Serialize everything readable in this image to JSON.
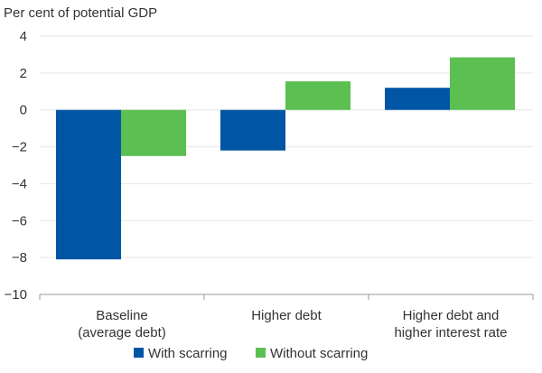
{
  "chart_data": {
    "type": "bar",
    "ylabel": "Per cent of potential GDP",
    "categories": [
      [
        "Baseline",
        "(average debt)"
      ],
      [
        "Higher debt"
      ],
      [
        "Higher debt and",
        "higher interest rate"
      ]
    ],
    "series": [
      {
        "name": "With scarring",
        "color": "#0055a5",
        "values": [
          -8.1,
          -2.2,
          1.2
        ]
      },
      {
        "name": "Without scarring",
        "color": "#5cbf52",
        "values": [
          -2.5,
          1.55,
          2.85
        ]
      }
    ],
    "ylim": [
      -10,
      4
    ],
    "yticks": [
      4,
      2,
      0,
      -2,
      -4,
      -6,
      -8,
      -10
    ],
    "ytick_labels": [
      "4",
      "2",
      "0",
      "−2",
      "−4",
      "−6",
      "−8",
      "−10"
    ],
    "grid": true,
    "legend_position": "bottom-center",
    "gridline_color": "#e6e6e6",
    "axis_color": "#9a9a9a"
  }
}
